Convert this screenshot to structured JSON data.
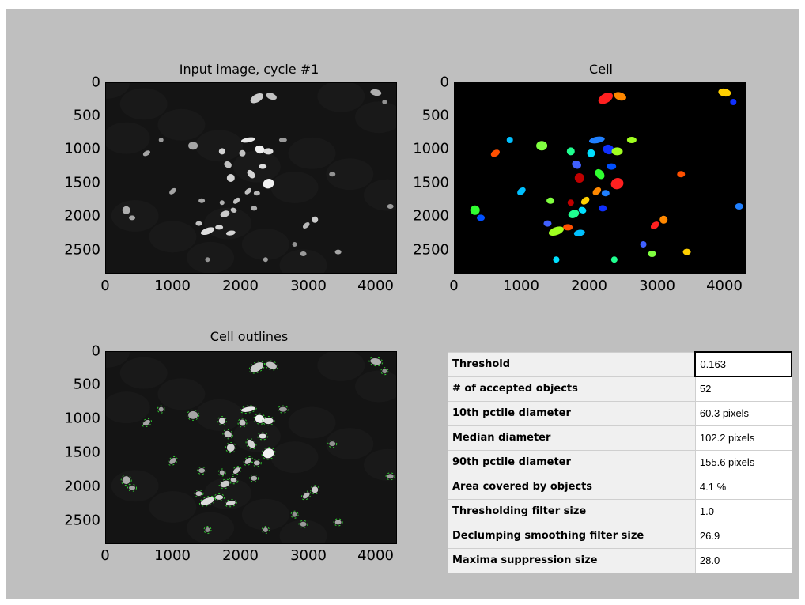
{
  "panels": {
    "input_image": {
      "title": "Input image, cycle #1"
    },
    "cell": {
      "title": "Cell"
    },
    "outlines": {
      "title": "Cell outlines"
    }
  },
  "axes": {
    "y_ticks": [
      "0",
      "500",
      "1000",
      "1500",
      "2000",
      "2500"
    ],
    "x_ticks": [
      "0",
      "1000",
      "2000",
      "3000",
      "4000"
    ]
  },
  "stats": [
    {
      "label": "Threshold",
      "value": "0.163"
    },
    {
      "label": "# of accepted objects",
      "value": "52"
    },
    {
      "label": "10th pctile diameter",
      "value": "60.3 pixels"
    },
    {
      "label": "Median diameter",
      "value": "102.2 pixels"
    },
    {
      "label": "90th pctile diameter",
      "value": "155.6 pixels"
    },
    {
      "label": "Area covered by objects",
      "value": "4.1 %"
    },
    {
      "label": "Thresholding filter size",
      "value": "1.0"
    },
    {
      "label": "Declumping smoothing filter size",
      "value": "26.9"
    },
    {
      "label": "Maxima suppression size",
      "value": "28.0"
    }
  ],
  "colors": {
    "figure_bg": "#bfbfbf",
    "input_bg": "#141414",
    "mask_bg": "#000000",
    "outline": "#33dd33"
  }
}
